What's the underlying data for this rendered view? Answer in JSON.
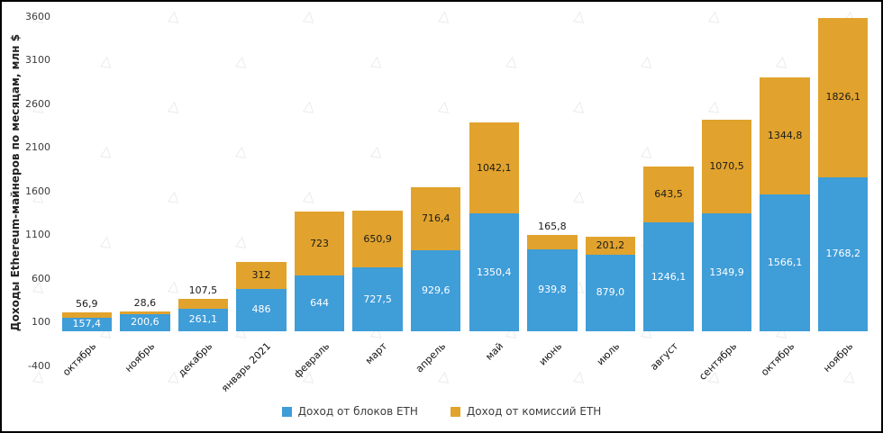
{
  "chart_data": {
    "type": "bar",
    "stacked": true,
    "title": "",
    "xlabel": "",
    "ylabel": "Доходы Ethereum-майнеров по месяцам, млн $",
    "ylim": [
      -400,
      3600
    ],
    "yticks": [
      3600,
      3100,
      2600,
      2100,
      1600,
      1100,
      600,
      100,
      -400
    ],
    "grid": false,
    "legend_position": "bottom",
    "categories": [
      "октябрь",
      "ноябрь",
      "декабрь",
      "январь 2021",
      "февраль",
      "март",
      "апрель",
      "май",
      "июнь",
      "июль",
      "август",
      "сентябрь",
      "октябрь",
      "ноябрь"
    ],
    "series": [
      {
        "name": "Доход от блоков ETH",
        "color": "#3f9dd8",
        "values": [
          157.4,
          200.6,
          261.1,
          486,
          644,
          727.5,
          929.6,
          1350.4,
          939.8,
          879.0,
          1246.1,
          1349.9,
          1566.1,
          1768.2
        ],
        "labels": [
          "157,4",
          "200,6",
          "261,1",
          "486",
          "644",
          "727,5",
          "929,6",
          "1350,4",
          "939,8",
          "879,0",
          "1246,1",
          "1349,9",
          "1566,1",
          "1768,2"
        ]
      },
      {
        "name": "Доход от комиссий ETH",
        "color": "#e1a32d",
        "values": [
          56.9,
          28.6,
          107.5,
          312,
          723,
          650.9,
          716.4,
          1042.1,
          165.8,
          201.2,
          643.5,
          1070.5,
          1344.8,
          1826.1
        ],
        "labels": [
          "56,9",
          "28,6",
          "107,5",
          "312",
          "723",
          "650,9",
          "716,4",
          "1042,1",
          "165,8",
          "201,2",
          "643,5",
          "1070,5",
          "1344,8",
          "1826,1"
        ]
      }
    ]
  },
  "colors": {
    "blocks": "#3f9dd8",
    "fees": "#e1a32d",
    "frame": "#000000",
    "background": "#ffffff"
  }
}
